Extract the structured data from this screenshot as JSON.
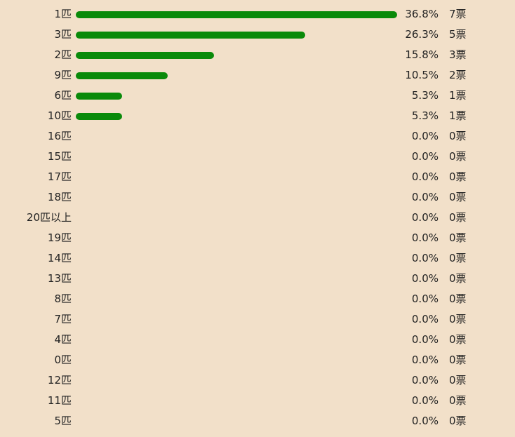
{
  "colors": {
    "background": "#f2e0c9",
    "bar": "#0a8a0a",
    "text": "#222222"
  },
  "chart_data": {
    "type": "bar",
    "orientation": "horizontal",
    "grid": false,
    "legend": "none",
    "xlim": [
      0,
      36.8
    ],
    "categories": [
      "1匹",
      "3匹",
      "2匹",
      "9匹",
      "6匹",
      "10匹",
      "16匹",
      "15匹",
      "17匹",
      "18匹",
      "20匹以上",
      "19匹",
      "14匹",
      "13匹",
      "8匹",
      "7匹",
      "4匹",
      "0匹",
      "12匹",
      "11匹",
      "5匹"
    ],
    "values": [
      36.8,
      26.3,
      15.8,
      10.5,
      5.3,
      5.3,
      0.0,
      0.0,
      0.0,
      0.0,
      0.0,
      0.0,
      0.0,
      0.0,
      0.0,
      0.0,
      0.0,
      0.0,
      0.0,
      0.0,
      0.0
    ],
    "percent_labels": [
      "36.8%",
      "26.3%",
      "15.8%",
      "10.5%",
      "5.3%",
      "5.3%",
      "0.0%",
      "0.0%",
      "0.0%",
      "0.0%",
      "0.0%",
      "0.0%",
      "0.0%",
      "0.0%",
      "0.0%",
      "0.0%",
      "0.0%",
      "0.0%",
      "0.0%",
      "0.0%",
      "0.0%"
    ],
    "vote_labels": [
      "7票",
      "5票",
      "3票",
      "2票",
      "1票",
      "1票",
      "0票",
      "0票",
      "0票",
      "0票",
      "0票",
      "0票",
      "0票",
      "0票",
      "0票",
      "0票",
      "0票",
      "0票",
      "0票",
      "0票",
      "0票"
    ]
  }
}
